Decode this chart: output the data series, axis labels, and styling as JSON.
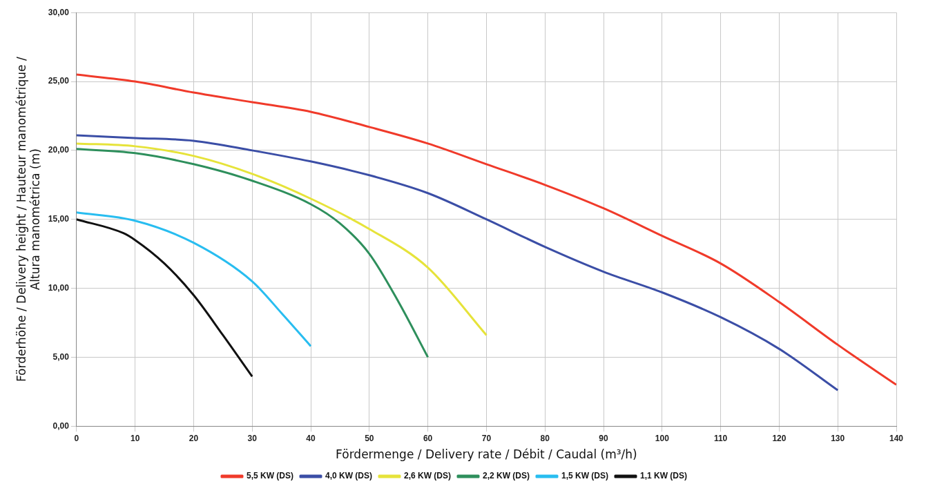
{
  "chart_data": {
    "type": "line",
    "xlabel": "Fördermenge / Delivery rate / Débit / Caudal (m³/h)",
    "ylabel": "Förderhöhe / Delivery height / Hauteur manométrique /\nAltura manométrica (m)",
    "xlim": [
      0,
      140
    ],
    "xticks": [
      0,
      10,
      20,
      30,
      40,
      50,
      60,
      70,
      80,
      90,
      100,
      110,
      120,
      130,
      140
    ],
    "ylim": [
      0,
      30
    ],
    "yticks": [
      {
        "value": 0,
        "label": "0,00"
      },
      {
        "value": 5,
        "label": "5,00"
      },
      {
        "value": 10,
        "label": "10,00"
      },
      {
        "value": 15,
        "label": "15,00"
      },
      {
        "value": 20,
        "label": "20,00"
      },
      {
        "value": 25,
        "label": "25,00"
      },
      {
        "value": 30,
        "label": "30,00"
      }
    ],
    "grid": true,
    "legend": "bottom",
    "marker": "none",
    "line_style": "solid",
    "series": [
      {
        "name": "5,5 KW (DS)",
        "color": "#f03a2a",
        "x": [
          0,
          10,
          20,
          30,
          40,
          50,
          60,
          70,
          80,
          90,
          100,
          110,
          120,
          130,
          140
        ],
        "values": [
          25.5,
          25.0,
          24.2,
          23.5,
          22.8,
          21.7,
          20.5,
          19.0,
          17.5,
          15.8,
          13.8,
          11.8,
          9.0,
          5.9,
          3.0
        ]
      },
      {
        "name": "4,0 KW (DS)",
        "color": "#3b4ea6",
        "x": [
          0,
          10,
          20,
          30,
          40,
          50,
          60,
          70,
          80,
          90,
          100,
          110,
          120,
          130
        ],
        "values": [
          21.1,
          20.9,
          20.7,
          20.0,
          19.2,
          18.2,
          16.9,
          15.0,
          13.0,
          11.2,
          9.7,
          7.9,
          5.6,
          2.6
        ]
      },
      {
        "name": "2,6 KW (DS)",
        "color": "#e6e33a",
        "x": [
          0,
          10,
          20,
          30,
          40,
          50,
          60,
          70
        ],
        "values": [
          20.5,
          20.3,
          19.6,
          18.3,
          16.5,
          14.3,
          11.5,
          6.6
        ]
      },
      {
        "name": "2,2 KW (DS)",
        "color": "#2e8f5c",
        "x": [
          0,
          10,
          20,
          30,
          40,
          45,
          50,
          55,
          60
        ],
        "values": [
          20.1,
          19.8,
          19.0,
          17.8,
          16.1,
          14.7,
          12.5,
          9.0,
          5.0
        ]
      },
      {
        "name": "1,5 KW (DS)",
        "color": "#28bdf0",
        "x": [
          0,
          10,
          20,
          30,
          35,
          40
        ],
        "values": [
          15.5,
          14.9,
          13.3,
          10.5,
          8.2,
          5.8
        ]
      },
      {
        "name": "1,1 KW (DS)",
        "color": "#111111",
        "x": [
          0,
          8,
          10,
          15,
          20,
          25,
          30
        ],
        "values": [
          15.0,
          14.0,
          13.5,
          11.8,
          9.5,
          6.6,
          3.6
        ]
      }
    ]
  }
}
